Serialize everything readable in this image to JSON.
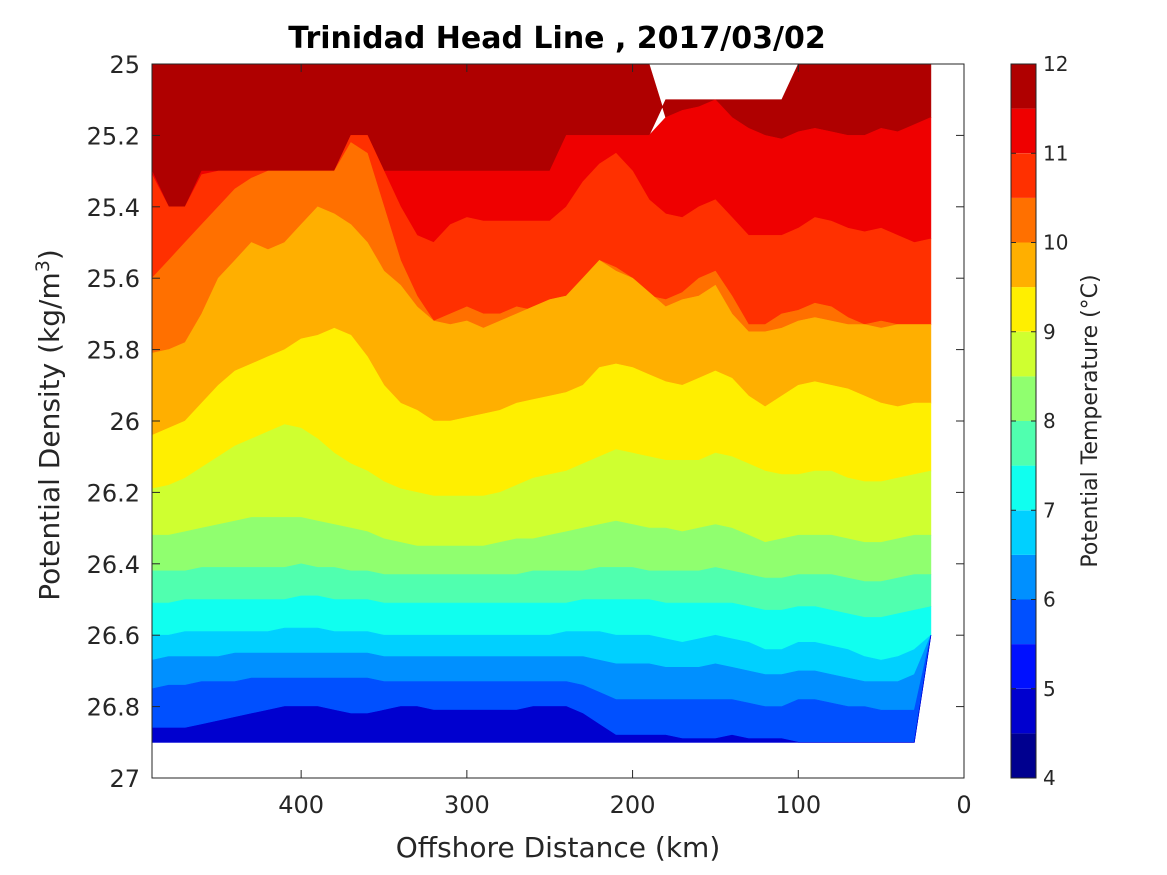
{
  "chart_data": {
    "type": "filled-contour",
    "title": "Trinidad Head Line , 2017/03/02",
    "xlabel": "Offshore Distance (km)",
    "ylabel": {
      "prefix": "Potential Density (kg/m",
      "sup": "3",
      "suffix": ")"
    },
    "xlim": [
      490,
      0
    ],
    "ylim": [
      25,
      27
    ],
    "y_reversed": true,
    "x_reversed": true,
    "xticks": [
      400,
      300,
      200,
      100,
      0
    ],
    "xtick_labels": [
      "400",
      "300",
      "200",
      "100",
      "0"
    ],
    "yticks": [
      25,
      25.2,
      25.4,
      25.6,
      25.8,
      26,
      26.2,
      26.4,
      26.6,
      26.8,
      27
    ],
    "ytick_labels": [
      "25",
      "25.2",
      "25.4",
      "25.6",
      "25.8",
      "26",
      "26.2",
      "26.4",
      "26.6",
      "26.8",
      "27"
    ],
    "colorbar": {
      "label": "Potential Temperature (°C)",
      "range": [
        4,
        12
      ],
      "levels": [
        4,
        4.5,
        5,
        5.5,
        6,
        6.5,
        7,
        7.5,
        8,
        8.5,
        9,
        9.5,
        10,
        10.5,
        11,
        11.5,
        12
      ],
      "ticks": [
        4,
        5,
        6,
        7,
        8,
        9,
        10,
        11,
        12
      ],
      "tick_labels": [
        "4",
        "5",
        "6",
        "7",
        "8",
        "9",
        "10",
        "11",
        "12"
      ],
      "colors": [
        "#00008f",
        "#0000cf",
        "#0010ff",
        "#0050ff",
        "#0090ff",
        "#00d0ff",
        "#10ffef",
        "#50ffaf",
        "#90ff6f",
        "#cfff30",
        "#ffef00",
        "#ffaf00",
        "#ff7000",
        "#ff3000",
        "#ef0000",
        "#af0000"
      ]
    },
    "x_stations": [
      490,
      480,
      470,
      460,
      450,
      440,
      430,
      420,
      410,
      400,
      390,
      380,
      370,
      360,
      350,
      340,
      330,
      320,
      310,
      300,
      290,
      280,
      270,
      260,
      250,
      240,
      230,
      220,
      210,
      200,
      190,
      180,
      170,
      160,
      150,
      140,
      130,
      120,
      110,
      100,
      90,
      80,
      70,
      60,
      50,
      40,
      30,
      20
    ],
    "top_boundary": [
      25.3,
      25.4,
      25.4,
      25.3,
      25.3,
      25.3,
      25.3,
      25.3,
      25.3,
      25.3,
      25.3,
      25.3,
      25.2,
      25.2,
      25.3,
      25.3,
      25.3,
      25.3,
      25.3,
      25.3,
      25.3,
      25.3,
      25.3,
      25.3,
      25.3,
      25.2,
      25.2,
      25.2,
      25.2,
      25.2,
      25.2,
      25.1,
      25.1,
      25.1,
      25.1,
      25.1,
      25.1,
      25.1,
      25.1,
      25.0,
      25.0,
      25.0,
      25.0,
      25.0,
      25.0,
      25.0,
      25.0,
      25.0
    ],
    "bottom_boundary": [
      26.9,
      26.9,
      26.9,
      26.9,
      26.9,
      26.9,
      26.9,
      26.9,
      26.9,
      26.9,
      26.9,
      26.9,
      26.9,
      26.9,
      26.9,
      26.9,
      26.9,
      26.9,
      26.9,
      26.9,
      26.9,
      26.9,
      26.9,
      26.9,
      26.9,
      26.9,
      26.9,
      26.9,
      26.9,
      26.9,
      26.9,
      26.9,
      26.9,
      26.9,
      26.9,
      26.9,
      26.9,
      26.9,
      26.9,
      26.9,
      26.9,
      26.9,
      26.9,
      26.9,
      26.9,
      26.9,
      26.9,
      26.6
    ],
    "isotherms": [
      {
        "level": 11.5,
        "sigma": [
          25.0,
          25.0,
          25.0,
          25.0,
          25.0,
          25.0,
          25.0,
          25.0,
          25.0,
          25.0,
          25.0,
          25.0,
          25.0,
          25.0,
          25.0,
          25.0,
          25.0,
          25.0,
          25.0,
          25.0,
          25.0,
          25.0,
          25.0,
          25.0,
          25.0,
          25.0,
          25.0,
          25.0,
          25.0,
          25.0,
          25.0,
          25.0,
          25.0,
          25.0,
          25.0,
          25.0,
          25.0,
          25.0,
          25.0,
          25.0,
          25.0,
          25.0,
          25.0,
          25.0,
          25.0,
          25.0,
          25.0,
          25.0
        ]
      },
      {
        "level": 11.0,
        "sigma": [
          25.0,
          25.0,
          25.0,
          25.0,
          25.0,
          25.0,
          25.0,
          25.0,
          25.0,
          25.0,
          25.0,
          25.0,
          25.0,
          25.0,
          25.0,
          25.0,
          25.0,
          25.0,
          25.0,
          25.0,
          25.0,
          25.0,
          25.0,
          25.0,
          25.0,
          25.0,
          25.0,
          25.0,
          25.0,
          25.0,
          25.0,
          25.15,
          25.13,
          25.12,
          25.1,
          25.15,
          25.18,
          25.2,
          25.21,
          25.19,
          25.18,
          25.19,
          25.2,
          25.2,
          25.18,
          25.19,
          25.17,
          25.15
        ]
      },
      {
        "level": 10.5,
        "sigma": [
          25.31,
          25.4,
          25.4,
          25.31,
          25.3,
          25.3,
          25.3,
          25.3,
          25.3,
          25.3,
          25.3,
          25.3,
          25.2,
          25.2,
          25.3,
          25.4,
          25.48,
          25.5,
          25.45,
          25.43,
          25.44,
          25.44,
          25.44,
          25.44,
          25.44,
          25.4,
          25.33,
          25.28,
          25.25,
          25.3,
          25.38,
          25.42,
          25.43,
          25.4,
          25.38,
          25.43,
          25.48,
          25.48,
          25.48,
          25.46,
          25.43,
          25.44,
          25.46,
          25.47,
          25.46,
          25.48,
          25.5,
          25.49
        ]
      },
      {
        "level": 10.0,
        "sigma": [
          25.6,
          25.55,
          25.5,
          25.45,
          25.4,
          25.35,
          25.32,
          25.3,
          25.3,
          25.3,
          25.3,
          25.3,
          25.22,
          25.25,
          25.4,
          25.55,
          25.65,
          25.72,
          25.7,
          25.68,
          25.7,
          25.7,
          25.68,
          25.69,
          25.7,
          25.65,
          25.6,
          25.55,
          25.57,
          25.6,
          25.65,
          25.66,
          25.64,
          25.6,
          25.58,
          25.65,
          25.73,
          25.73,
          25.7,
          25.69,
          25.67,
          25.68,
          25.71,
          25.73,
          25.72,
          25.73,
          25.73,
          25.73
        ]
      },
      {
        "level": 9.5,
        "sigma": [
          25.81,
          25.8,
          25.78,
          25.7,
          25.6,
          25.55,
          25.5,
          25.52,
          25.5,
          25.45,
          25.4,
          25.42,
          25.45,
          25.5,
          25.58,
          25.62,
          25.68,
          25.72,
          25.73,
          25.72,
          25.74,
          25.72,
          25.7,
          25.68,
          25.66,
          25.65,
          25.6,
          25.55,
          25.58,
          25.6,
          25.64,
          25.68,
          25.66,
          25.65,
          25.62,
          25.7,
          25.75,
          25.75,
          25.74,
          25.72,
          25.71,
          25.72,
          25.73,
          25.73,
          25.74,
          25.73,
          25.73,
          25.73
        ]
      },
      {
        "level": 9.0,
        "sigma": [
          26.04,
          26.02,
          26.0,
          25.95,
          25.9,
          25.86,
          25.84,
          25.82,
          25.8,
          25.77,
          25.76,
          25.74,
          25.76,
          25.82,
          25.9,
          25.95,
          25.97,
          26.0,
          26.0,
          25.99,
          25.98,
          25.97,
          25.95,
          25.94,
          25.93,
          25.92,
          25.9,
          25.85,
          25.84,
          25.85,
          25.87,
          25.89,
          25.9,
          25.88,
          25.86,
          25.88,
          25.93,
          25.96,
          25.93,
          25.9,
          25.89,
          25.9,
          25.91,
          25.93,
          25.95,
          25.96,
          25.95,
          25.95
        ]
      },
      {
        "level": 8.5,
        "sigma": [
          26.19,
          26.18,
          26.16,
          26.13,
          26.1,
          26.07,
          26.05,
          26.03,
          26.01,
          26.02,
          26.05,
          26.09,
          26.12,
          26.14,
          26.17,
          26.19,
          26.2,
          26.21,
          26.21,
          26.21,
          26.21,
          26.2,
          26.18,
          26.16,
          26.15,
          26.14,
          26.12,
          26.1,
          26.08,
          26.09,
          26.1,
          26.11,
          26.11,
          26.11,
          26.09,
          26.1,
          26.12,
          26.14,
          26.15,
          26.15,
          26.14,
          26.14,
          26.16,
          26.17,
          26.17,
          26.16,
          26.15,
          26.14
        ]
      },
      {
        "level": 8.0,
        "sigma": [
          26.32,
          26.32,
          26.31,
          26.3,
          26.29,
          26.28,
          26.27,
          26.27,
          26.27,
          26.27,
          26.28,
          26.29,
          26.3,
          26.31,
          26.33,
          26.34,
          26.35,
          26.35,
          26.35,
          26.35,
          26.35,
          26.34,
          26.33,
          26.33,
          26.32,
          26.31,
          26.3,
          26.29,
          26.28,
          26.29,
          26.3,
          26.3,
          26.31,
          26.3,
          26.29,
          26.3,
          26.32,
          26.34,
          26.33,
          26.32,
          26.32,
          26.32,
          26.33,
          26.34,
          26.34,
          26.33,
          26.32,
          26.32
        ]
      },
      {
        "level": 7.5,
        "sigma": [
          26.42,
          26.42,
          26.42,
          26.41,
          26.41,
          26.41,
          26.41,
          26.41,
          26.41,
          26.4,
          26.41,
          26.41,
          26.42,
          26.42,
          26.43,
          26.43,
          26.43,
          26.43,
          26.43,
          26.43,
          26.43,
          26.43,
          26.43,
          26.42,
          26.42,
          26.42,
          26.42,
          26.41,
          26.41,
          26.41,
          26.42,
          26.42,
          26.42,
          26.42,
          26.41,
          26.42,
          26.43,
          26.44,
          26.44,
          26.43,
          26.43,
          26.43,
          26.44,
          26.45,
          26.45,
          26.44,
          26.43,
          26.43
        ]
      },
      {
        "level": 7.0,
        "sigma": [
          26.51,
          26.51,
          26.5,
          26.5,
          26.5,
          26.5,
          26.5,
          26.5,
          26.5,
          26.49,
          26.49,
          26.5,
          26.5,
          26.5,
          26.51,
          26.51,
          26.51,
          26.51,
          26.51,
          26.51,
          26.51,
          26.51,
          26.51,
          26.51,
          26.51,
          26.51,
          26.5,
          26.5,
          26.5,
          26.5,
          26.5,
          26.51,
          26.51,
          26.51,
          26.51,
          26.51,
          26.52,
          26.53,
          26.53,
          26.52,
          26.52,
          26.53,
          26.54,
          26.55,
          26.55,
          26.54,
          26.53,
          26.52
        ]
      },
      {
        "level": 6.5,
        "sigma": [
          26.6,
          26.6,
          26.59,
          26.59,
          26.59,
          26.59,
          26.59,
          26.59,
          26.58,
          26.58,
          26.58,
          26.59,
          26.59,
          26.59,
          26.6,
          26.6,
          26.6,
          26.6,
          26.6,
          26.6,
          26.6,
          26.6,
          26.6,
          26.6,
          26.6,
          26.59,
          26.59,
          26.59,
          26.6,
          26.6,
          26.6,
          26.61,
          26.62,
          26.61,
          26.6,
          26.61,
          26.62,
          26.64,
          26.64,
          26.62,
          26.62,
          26.63,
          26.64,
          26.66,
          26.67,
          26.66,
          26.64,
          26.62
        ]
      },
      {
        "level": 6.0,
        "sigma": [
          26.67,
          26.66,
          26.66,
          26.66,
          26.66,
          26.65,
          26.65,
          26.65,
          26.65,
          26.65,
          26.65,
          26.65,
          26.65,
          26.65,
          26.66,
          26.66,
          26.66,
          26.66,
          26.66,
          26.66,
          26.66,
          26.66,
          26.66,
          26.66,
          26.66,
          26.66,
          26.66,
          26.67,
          26.68,
          26.68,
          26.68,
          26.69,
          26.69,
          26.69,
          26.68,
          26.69,
          26.7,
          26.71,
          26.71,
          26.7,
          26.7,
          26.71,
          26.72,
          26.73,
          26.73,
          26.73,
          26.71,
          26.69
        ]
      },
      {
        "level": 5.5,
        "sigma": [
          26.75,
          26.74,
          26.74,
          26.73,
          26.73,
          26.73,
          26.72,
          26.72,
          26.72,
          26.72,
          26.72,
          26.72,
          26.72,
          26.72,
          26.73,
          26.73,
          26.73,
          26.73,
          26.73,
          26.73,
          26.73,
          26.73,
          26.73,
          26.73,
          26.73,
          26.73,
          26.74,
          26.76,
          26.78,
          26.78,
          26.78,
          26.78,
          26.78,
          26.78,
          26.78,
          26.78,
          26.79,
          26.8,
          26.8,
          26.78,
          26.78,
          26.79,
          26.8,
          26.8,
          26.81,
          26.81,
          26.81,
          26.81
        ]
      },
      {
        "level": 5.0,
        "sigma": [
          26.86,
          26.86,
          26.86,
          26.85,
          26.84,
          26.83,
          26.82,
          26.81,
          26.8,
          26.8,
          26.8,
          26.81,
          26.82,
          26.82,
          26.81,
          26.8,
          26.8,
          26.81,
          26.81,
          26.81,
          26.81,
          26.81,
          26.81,
          26.8,
          26.8,
          26.8,
          26.82,
          26.85,
          26.88,
          26.88,
          26.88,
          26.88,
          26.89,
          26.89,
          26.89,
          26.88,
          26.89,
          26.89,
          26.89,
          26.9,
          26.9,
          26.9,
          26.9,
          26.9,
          26.9,
          26.9,
          26.9,
          26.9
        ]
      }
    ]
  }
}
